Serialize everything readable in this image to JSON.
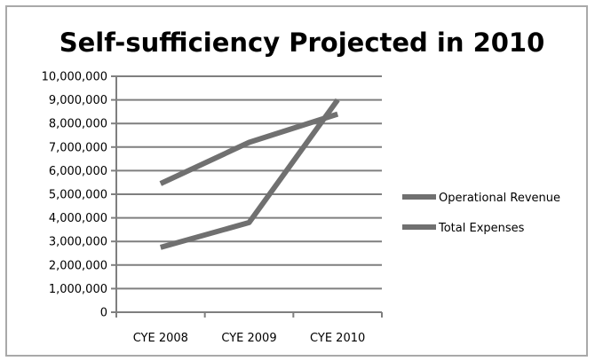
{
  "chart_data": {
    "type": "line",
    "title": "Self-sufficiency Projected in 2010",
    "categories": [
      "CYE 2008",
      "CYE 2009",
      "CYE 2010"
    ],
    "series": [
      {
        "name": "Operational Revenue",
        "values": [
          2750000,
          3800000,
          9000000
        ]
      },
      {
        "name": "Total Expenses",
        "values": [
          5450000,
          7200000,
          8400000
        ]
      }
    ],
    "ylim": [
      0,
      10000000
    ],
    "yticks": [
      "0",
      "1,000,000",
      "2,000,000",
      "3,000,000",
      "4,000,000",
      "5,000,000",
      "6,000,000",
      "7,000,000",
      "8,000,000",
      "9,000,000",
      "10,000,000"
    ],
    "grid": true,
    "legend_position": "right",
    "colors": {
      "series_line": "#707070",
      "grid": "#7f7f7f",
      "frame": "#a9a9a9"
    }
  }
}
